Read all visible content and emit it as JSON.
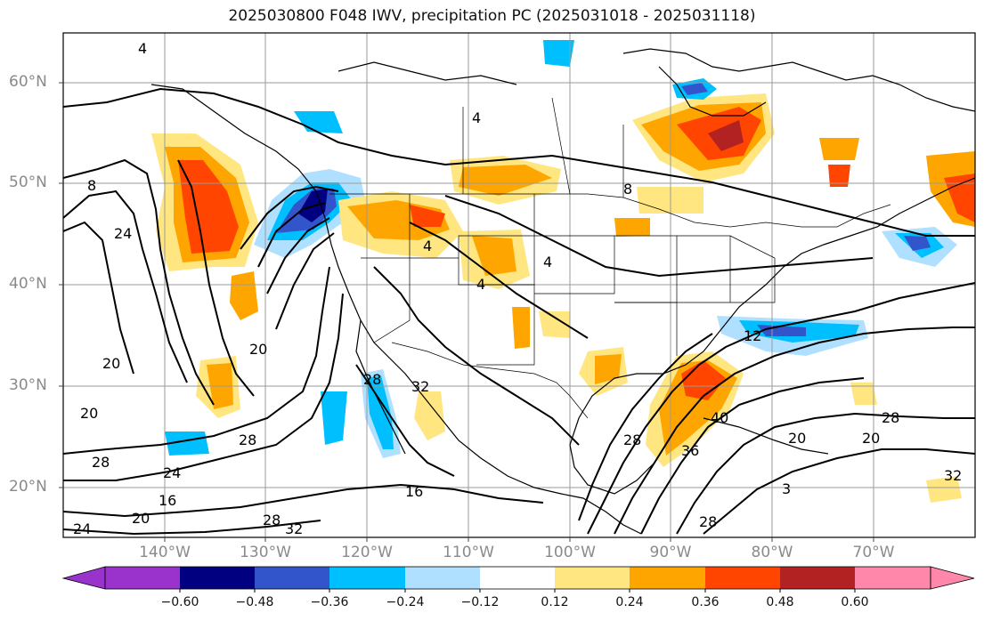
{
  "title": "2025030800 F048 IWV, precipitation PC (2025031018 - 2025031118)",
  "map": {
    "lat_labels": [
      {
        "text": "60°N",
        "lat": 60
      },
      {
        "text": "50°N",
        "lat": 50
      },
      {
        "text": "40°N",
        "lat": 40
      },
      {
        "text": "30°N",
        "lat": 30
      },
      {
        "text": "20°N",
        "lat": 20
      }
    ],
    "lon_labels": [
      {
        "text": "140°W",
        "lon": -140
      },
      {
        "text": "130°W",
        "lon": -130
      },
      {
        "text": "120°W",
        "lon": -120
      },
      {
        "text": "110°W",
        "lon": -110
      },
      {
        "text": "100°W",
        "lon": -100
      },
      {
        "text": "90°W",
        "lon": -90
      },
      {
        "text": "80°W",
        "lon": -80
      },
      {
        "text": "70°W",
        "lon": -70
      }
    ],
    "extent": {
      "lon": [
        -149,
        -60
      ],
      "lat": [
        15,
        65
      ]
    },
    "contour_labels": [
      "4",
      "8",
      "24",
      "20",
      "20",
      "28",
      "24",
      "16",
      "20",
      "28",
      "32",
      "24",
      "28",
      "20",
      "16",
      "28",
      "32",
      "4",
      "4",
      "4",
      "12",
      "40",
      "36",
      "28",
      "20",
      "28",
      "32",
      "3",
      "28",
      "4",
      "8",
      "20"
    ]
  },
  "colorbar": {
    "tick_labels": [
      "−0.60",
      "−0.48",
      "−0.36",
      "−0.24",
      "−0.12",
      "0.12",
      "0.24",
      "0.36",
      "0.48",
      "0.60"
    ],
    "colors": [
      "#9933cc",
      "#000080",
      "#3355cc",
      "#00bfff",
      "#b0e0ff",
      "#ffffff",
      "#ffe680",
      "#ffa500",
      "#ff4500",
      "#b22222",
      "#ff88aa"
    ]
  }
}
